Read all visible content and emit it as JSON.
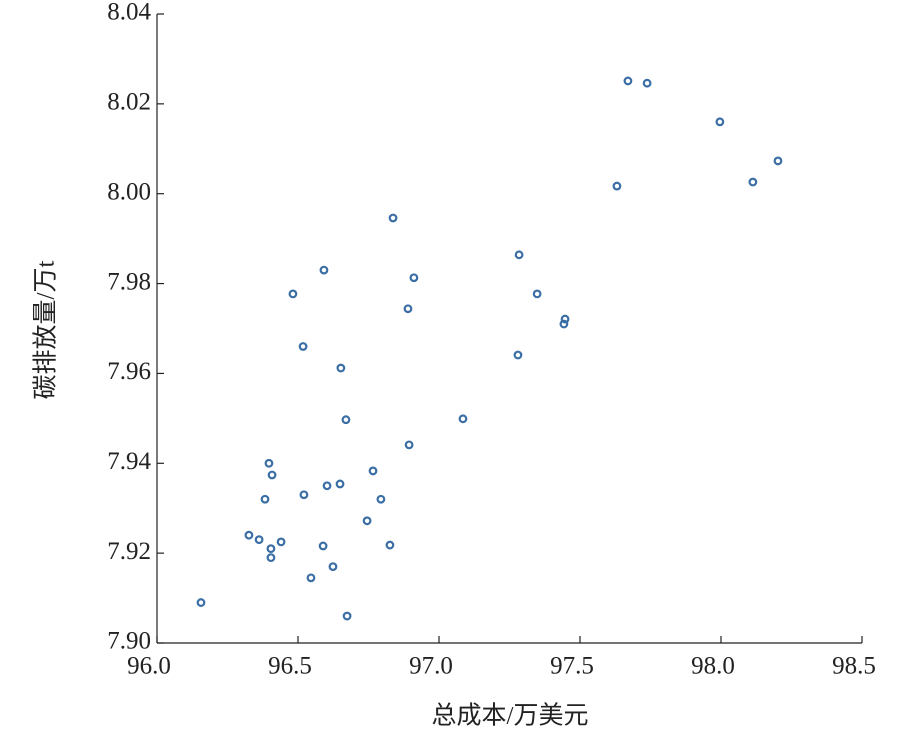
{
  "chart_data": {
    "type": "scatter",
    "x_label": "总成本/万美元",
    "y_label": "碳排放量/万t",
    "color": "#3a6ea5",
    "xlim": [
      96.0,
      98.5
    ],
    "xticks": [
      {
        "value": 96.0,
        "label": "96.0"
      },
      96.5,
      {
        "value": 97.0,
        "label": "97.0"
      },
      97.5,
      {
        "value": 98.0,
        "label": "98.0"
      },
      98.5
    ],
    "ylim": [
      7.9,
      8.04
    ],
    "yticks": [
      {
        "value": 7.9,
        "label": "7.90"
      },
      7.92,
      7.94,
      7.96,
      7.98,
      {
        "value": 8.0,
        "label": "8.00"
      },
      8.02,
      8.04
    ],
    "x": [
      96.156,
      96.326,
      96.362,
      96.404,
      96.404,
      96.44,
      96.383,
      96.397,
      96.408,
      96.482,
      96.518,
      96.521,
      96.546,
      96.592,
      96.589,
      96.603,
      96.624,
      96.649,
      96.652,
      96.67,
      96.674,
      96.745,
      96.766,
      96.794,
      96.826,
      96.837,
      96.89,
      96.894,
      96.911,
      97.085,
      97.28,
      97.284,
      97.348,
      97.443,
      97.447,
      97.631,
      97.67,
      97.738,
      97.996,
      98.113,
      98.202
    ],
    "y": [
      7.909,
      7.924,
      7.923,
      7.921,
      7.919,
      7.9225,
      7.932,
      7.94,
      7.9374,
      7.9777,
      7.966,
      7.933,
      7.9145,
      7.983,
      7.9216,
      7.935,
      7.917,
      7.9354,
      7.9612,
      7.9497,
      7.906,
      7.9272,
      7.9383,
      7.932,
      7.9218,
      7.9946,
      7.9744,
      7.9441,
      7.9813,
      7.9499,
      7.9641,
      7.9864,
      7.9777,
      7.971,
      7.9721,
      8.0017,
      8.0251,
      8.0246,
      8.016,
      8.0026,
      8.0073
    ]
  }
}
